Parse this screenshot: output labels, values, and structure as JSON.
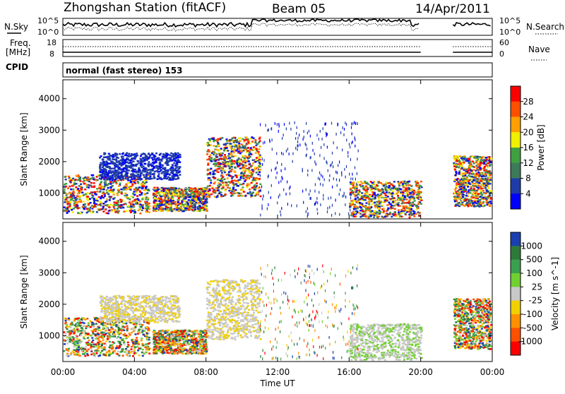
{
  "header": {
    "station": "Zhongshan Station (fitACF)",
    "beam": "Beam 05",
    "date": "14/Apr/2011"
  },
  "top_panels": {
    "nsky_label": "N.Sky",
    "nsearch_label": "N.Search",
    "nsky_ticks": [
      "10^5",
      "10^0"
    ],
    "nsearch_ticks": [
      "10^5",
      "10^0"
    ],
    "freq_label_line1": "Freq.",
    "freq_label_line2": "[MHz]",
    "freq_ticks": [
      "18",
      "8"
    ],
    "nave_label": "Nave",
    "nave_ticks": [
      "60",
      "0"
    ],
    "cpid_label": "CPID",
    "cpid_text": "normal (fast stereo) 153"
  },
  "chart_data": [
    {
      "type": "heatmap",
      "title": "",
      "ylabel": "Slant Range [km]",
      "xlabel": "",
      "ylim": [
        180,
        4600
      ],
      "yticks": [
        1000,
        2000,
        3000,
        4000
      ],
      "x_ticks": [
        "00:00",
        "04:00",
        "08:00",
        "12:00",
        "16:00",
        "20:00",
        "00:00"
      ],
      "colorbar": {
        "label": "Power [dB]",
        "ticks": [
          4,
          8,
          12,
          16,
          20,
          24,
          28
        ],
        "colors": [
          "#0000ff",
          "#1e3ca8",
          "#3c7a5a",
          "#40a040",
          "#f0f000",
          "#ffa000",
          "#ff5000",
          "#ff0000"
        ]
      },
      "regions": [
        {
          "t0": 0.0,
          "t1": 4.8,
          "r0": 380,
          "r1": 1600,
          "level": "mixed-high"
        },
        {
          "t0": 2.0,
          "t1": 6.5,
          "r0": 1450,
          "r1": 2300,
          "level": "low"
        },
        {
          "t0": 5.0,
          "t1": 8.0,
          "r0": 450,
          "r1": 1200,
          "level": "mixed-high"
        },
        {
          "t0": 8.0,
          "t1": 11.0,
          "r0": 900,
          "r1": 2800,
          "level": "mixed"
        },
        {
          "t0": 11.0,
          "t1": 16.5,
          "r0": 300,
          "r1": 3300,
          "level": "sparse-low"
        },
        {
          "t0": 16.0,
          "t1": 20.0,
          "r0": 250,
          "r1": 1400,
          "level": "mixed"
        },
        {
          "t0": 21.8,
          "t1": 23.9,
          "r0": 600,
          "r1": 2200,
          "level": "mixed"
        }
      ]
    },
    {
      "type": "heatmap",
      "title": "",
      "ylabel": "Slant Range [km]",
      "xlabel": "Time UT",
      "ylim": [
        180,
        4600
      ],
      "yticks": [
        1000,
        2000,
        3000,
        4000
      ],
      "x_ticks": [
        "00:00",
        "04:00",
        "08:00",
        "12:00",
        "16:00",
        "20:00",
        "00:00"
      ],
      "colorbar": {
        "label": "Velocity [m s^-1]",
        "ticks": [
          1000,
          500,
          100,
          25,
          -25,
          -100,
          -500,
          -1000
        ],
        "colors": [
          "#1a3fb0",
          "#2e7a3a",
          "#3aa050",
          "#70d030",
          "#c8c8c8",
          "#f0d000",
          "#ff9000",
          "#ff5000",
          "#ff0000"
        ]
      },
      "regions": [
        {
          "t0": 0.0,
          "t1": 4.8,
          "r0": 380,
          "r1": 1600,
          "level": "mixed"
        },
        {
          "t0": 2.0,
          "t1": 6.5,
          "r0": 1450,
          "r1": 2300,
          "level": "near-zero"
        },
        {
          "t0": 5.0,
          "t1": 8.0,
          "r0": 450,
          "r1": 1200,
          "level": "mixed"
        },
        {
          "t0": 8.0,
          "t1": 11.0,
          "r0": 900,
          "r1": 2800,
          "level": "near-zero"
        },
        {
          "t0": 11.0,
          "t1": 16.5,
          "r0": 300,
          "r1": 3300,
          "level": "sparse"
        },
        {
          "t0": 16.0,
          "t1": 20.0,
          "r0": 250,
          "r1": 1400,
          "level": "near-zero-positive"
        },
        {
          "t0": 21.8,
          "t1": 23.9,
          "r0": 600,
          "r1": 2200,
          "level": "mixed"
        }
      ]
    }
  ]
}
